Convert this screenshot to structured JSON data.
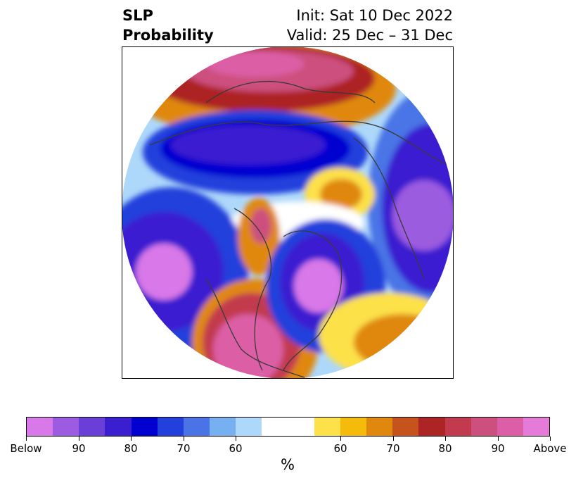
{
  "title": {
    "left_line1": "SLP",
    "left_line2": "Probability",
    "right_line1": "Init: Sat 10 Dec 2022",
    "right_line2": "Valid: 25 Dec – 31 Dec"
  },
  "colors": {
    "below": [
      "#d978e8",
      "#9c5be0",
      "#6a3fd8",
      "#3a1fd0",
      "#0000d0",
      "#2140dc",
      "#4a74e6",
      "#76b0f0",
      "#aed8fa"
    ],
    "neutral": "#ffffff",
    "above": [
      "#fde14a",
      "#f5bb0a",
      "#e0880e",
      "#c6531c",
      "#ad2424",
      "#c23a4e",
      "#cc4f7e",
      "#dc5ea6",
      "#e67ad8"
    ]
  },
  "colorbar": {
    "labels": [
      "Below",
      "90",
      "80",
      "70",
      "60",
      "60",
      "70",
      "80",
      "90",
      "Above"
    ],
    "unit": "%"
  }
}
